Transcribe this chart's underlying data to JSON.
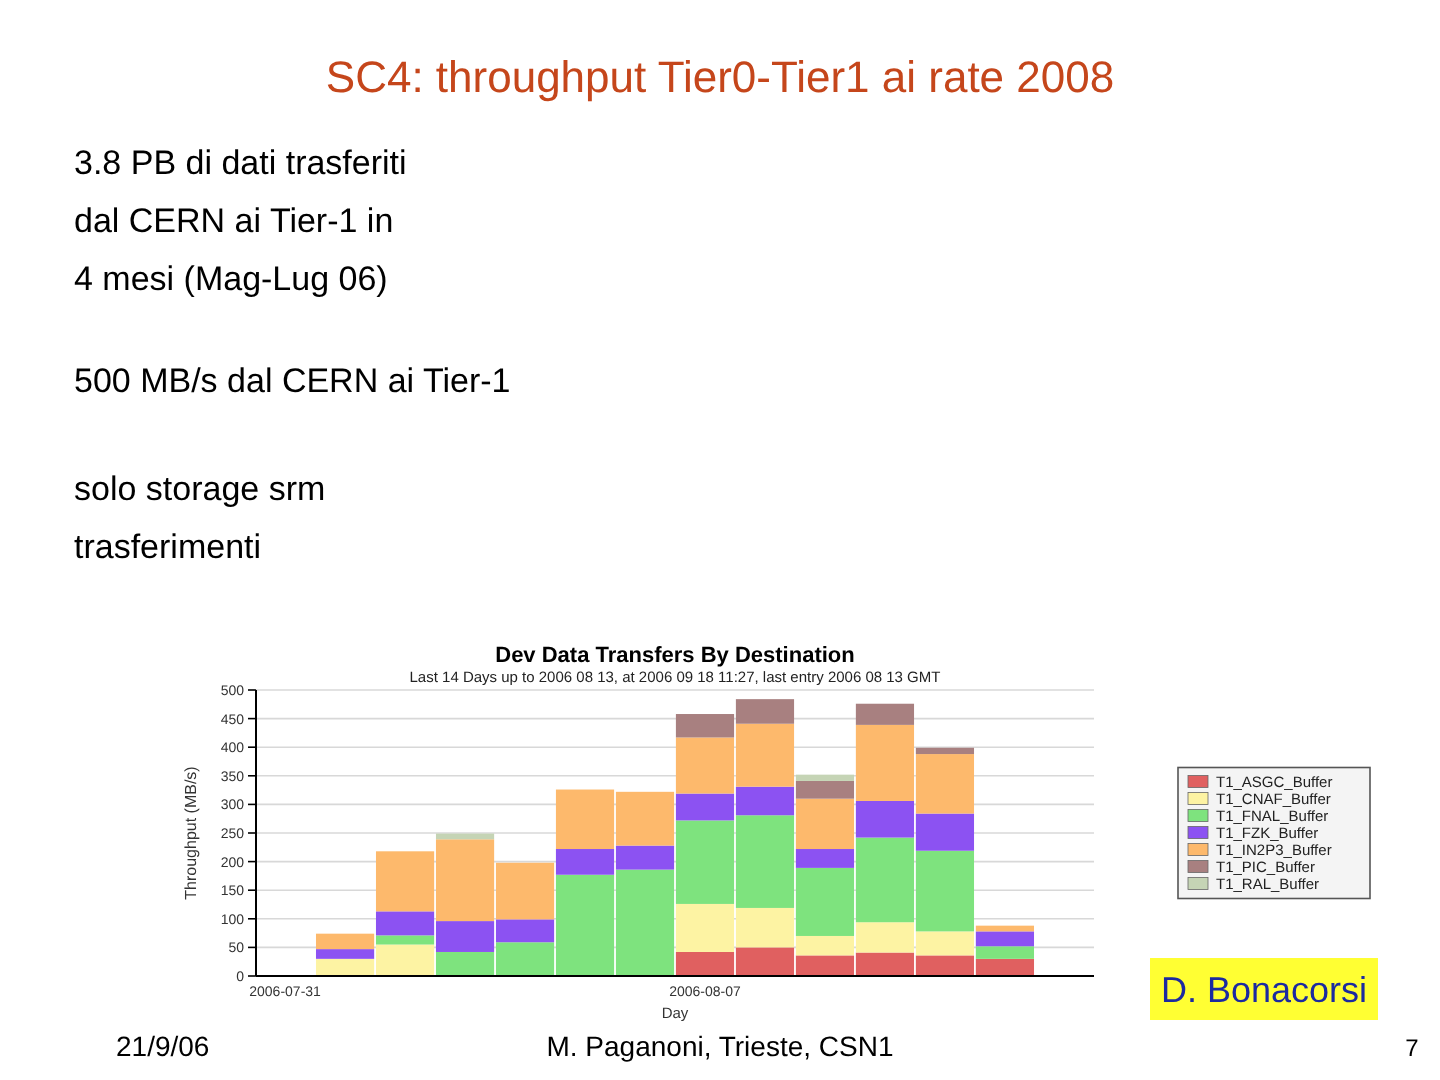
{
  "chart_data": {
    "type": "bar",
    "title": "SC4: throughput Tier0-Tier1 ai rate 2008",
    "subtitle": "Dev Data Transfers By Destination",
    "xlabel": "Day",
    "ylabel": "Throughput (MB/s)",
    "categories": [
      "2006-07-31",
      null,
      null,
      null,
      null,
      null,
      null,
      "2006-08-07",
      null,
      null,
      null,
      null,
      null,
      null
    ],
    "series": [
      {
        "name": "T1_ASGC_Buffer",
        "color": "#e06060",
        "values": [
          null,
          null,
          null,
          null,
          null,
          null,
          null,
          42,
          50,
          36,
          41,
          36,
          30,
          null
        ]
      },
      {
        "name": "T1_CNAF_Buffer",
        "color": "#fdf3a3",
        "values": [
          null,
          30,
          55,
          null,
          null,
          null,
          null,
          84,
          69,
          34,
          53,
          42,
          null,
          null
        ]
      },
      {
        "name": "T1_FNAL_Buffer",
        "color": "#7ee37e",
        "values": [
          null,
          null,
          16,
          42,
          59,
          177,
          186,
          146,
          162,
          119,
          148,
          141,
          22,
          null
        ]
      },
      {
        "name": "T1_FZK_Buffer",
        "color": "#8c52f2",
        "values": [
          null,
          17,
          42,
          54,
          40,
          45,
          42,
          47,
          50,
          33,
          64,
          65,
          26,
          null
        ]
      },
      {
        "name": "T1_IN2P3_Buffer",
        "color": "#fdb96c",
        "values": [
          null,
          27,
          105,
          143,
          99,
          104,
          94,
          98,
          110,
          88,
          133,
          104,
          10,
          null
        ]
      },
      {
        "name": "T1_PIC_Buffer",
        "color": "#a88080",
        "values": [
          null,
          null,
          null,
          null,
          null,
          null,
          null,
          41,
          43,
          31,
          37,
          11,
          null,
          null
        ]
      },
      {
        "name": "T1_RAL_Buffer",
        "color": "#c5d4b5",
        "values": [
          null,
          null,
          null,
          10,
          null,
          null,
          null,
          null,
          null,
          11,
          null,
          null,
          null,
          null
        ]
      }
    ],
    "stacked": true,
    "ylim": [
      0,
      500
    ],
    "yticks": [
      0,
      50,
      100,
      150,
      200,
      250,
      300,
      350,
      400,
      450,
      500
    ],
    "grid": "y",
    "legend": "right",
    "annotations": [
      "3.8 PB di dati trasferiti\ndal CERN ai Tier-1 in\n4 mesi (Mag-Lug 06)",
      "500 MB/s dal CERN ai Tier-1",
      "solo storage srm\ntrasferimenti",
      "Last 14 Days up to 2006 08 13, at 2006 09 18 11:27, last entry 2006 08 13 GMT",
      "21/9/06",
      "M. Paganoni, Trieste, CSN1",
      "D. Bonacorsi",
      "7"
    ]
  }
}
